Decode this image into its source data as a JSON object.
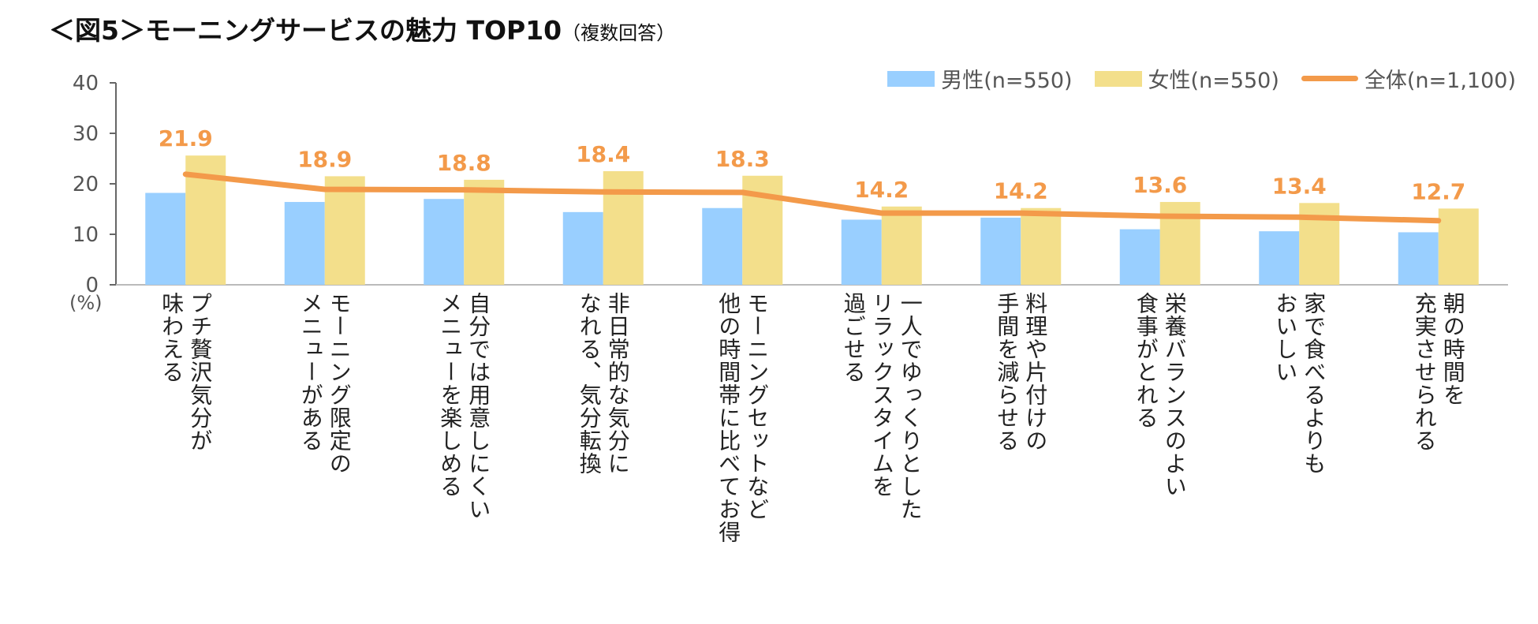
{
  "title": {
    "main": "＜図5＞モーニングサービスの魅力 TOP10",
    "sub": "（複数回答）"
  },
  "colors": {
    "male": "#99cfff",
    "female": "#f3df8b",
    "total": "#f39a4a",
    "axis": "#666666"
  },
  "chart_data": {
    "type": "bar",
    "title": "＜図5＞モーニングサービスの魅力 TOP10（複数回答）",
    "unit_label": "(%)",
    "ylim": [
      0,
      40
    ],
    "yticks": [
      0,
      10,
      20,
      30,
      40
    ],
    "legend_position": "top-right",
    "categories": [
      "プチ贅沢気分が\n味わえる",
      "モーニング限定の\nメニューがある",
      "自分では用意しにくい\nメニューを楽しめる",
      "非日常的な気分に\nなれる、気分転換",
      "モーニングセットなど\n他の時間帯に比べてお得",
      "一人でゆっくりとした\nリラックスタイムを\n過ごせる",
      "料理や片付けの\n手間を減らせる",
      "栄養バランスのよい\n食事がとれる",
      "家で食べるよりも\nおいしい",
      "朝の時間を\n充実させられる"
    ],
    "series": [
      {
        "name": "男性(n=550)",
        "type": "bar",
        "values": [
          18.2,
          16.4,
          17.0,
          14.4,
          15.2,
          12.9,
          13.3,
          11.0,
          10.6,
          10.4
        ]
      },
      {
        "name": "女性(n=550)",
        "type": "bar",
        "values": [
          25.6,
          21.5,
          20.8,
          22.5,
          21.6,
          15.5,
          15.2,
          16.4,
          16.2,
          15.1
        ]
      },
      {
        "name": "全体(n=1,100)",
        "type": "line",
        "values": [
          21.9,
          18.9,
          18.8,
          18.4,
          18.3,
          14.2,
          14.2,
          13.6,
          13.4,
          12.7
        ]
      }
    ],
    "data_labels": [
      "21.9",
      "18.9",
      "18.8",
      "18.4",
      "18.3",
      "14.2",
      "14.2",
      "13.6",
      "13.4",
      "12.7"
    ]
  }
}
